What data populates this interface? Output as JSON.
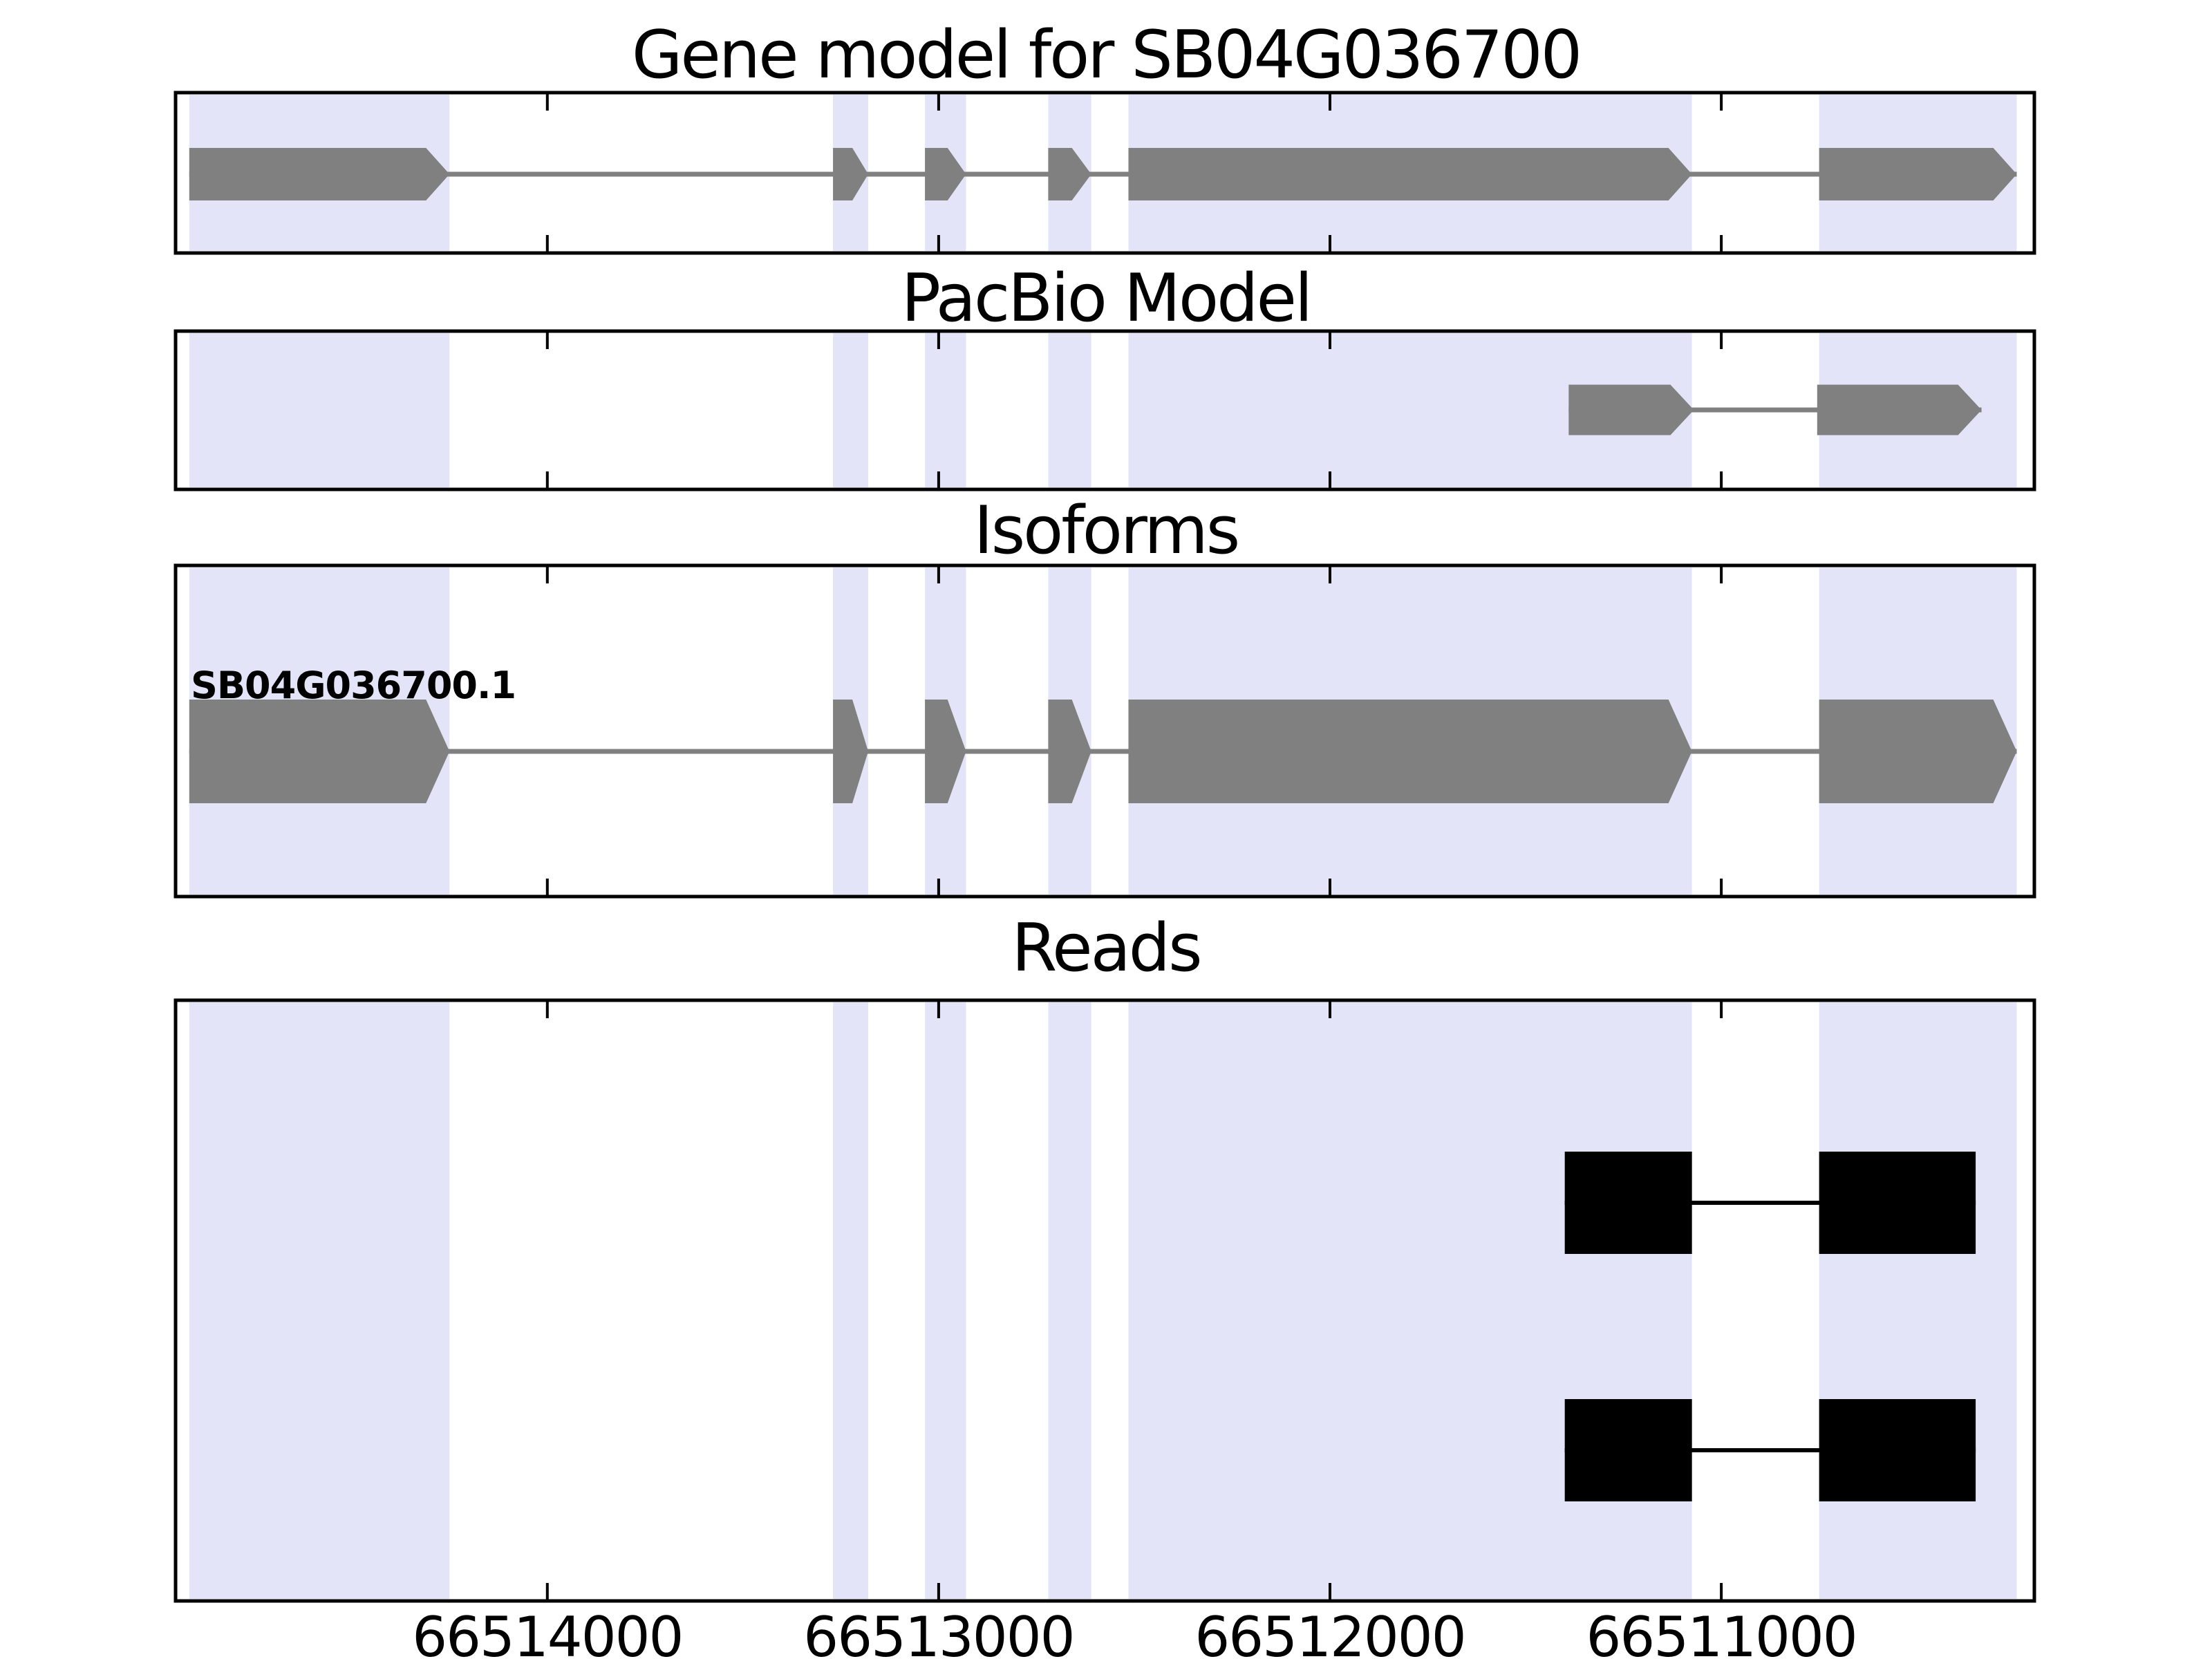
{
  "colors": {
    "background": "#ffffff",
    "exon_fill": "#808080",
    "intron_line": "#808080",
    "highlight_band": "#e4e4f9",
    "read_fill": "#000000",
    "frame": "#000000",
    "text": "#000000"
  },
  "chart_data": {
    "type": "genome-browser-tracks",
    "coordinate_note": "x axis shows genomic position, reversed (values decrease left to right); spans are [left_edge_pos, right_edge_pos] in genomic coordinates",
    "x_axis": {
      "xlim_left": 66514950,
      "xlim_right": 66510200,
      "reversed": true,
      "grid": false,
      "ticks": [
        {
          "pos": 66514000,
          "label": "66514000"
        },
        {
          "pos": 66513000,
          "label": "66513000"
        },
        {
          "pos": 66512000,
          "label": "66512000"
        },
        {
          "pos": 66511000,
          "label": "66511000"
        }
      ]
    },
    "highlight_regions": [
      [
        66514915,
        66514250
      ],
      [
        66513270,
        66513180
      ],
      [
        66513035,
        66512930
      ],
      [
        66512720,
        66512610
      ],
      [
        66512515,
        66511075
      ],
      [
        66510750,
        66510245
      ]
    ],
    "tracks": [
      {
        "id": "gene_model",
        "title": "Gene model for SB04G036700",
        "type": "gene",
        "features": [
          {
            "label": "",
            "arrow_direction": "right",
            "exons": [
              [
                66514915,
                66514250
              ],
              [
                66513270,
                66513180
              ],
              [
                66513035,
                66512930
              ],
              [
                66512720,
                66512610
              ],
              [
                66512515,
                66511075
              ],
              [
                66510750,
                66510245
              ]
            ]
          }
        ]
      },
      {
        "id": "pacbio",
        "title": "PacBio Model",
        "type": "gene",
        "features": [
          {
            "label": "",
            "arrow_direction": "right",
            "exons": [
              [
                66511390,
                66511070
              ],
              [
                66510755,
                66510335
              ]
            ]
          }
        ]
      },
      {
        "id": "isoforms",
        "title": "Isoforms",
        "type": "gene",
        "features": [
          {
            "label": "SB04G036700.1",
            "arrow_direction": "right",
            "exons": [
              [
                66514915,
                66514250
              ],
              [
                66513270,
                66513180
              ],
              [
                66513035,
                66512930
              ],
              [
                66512720,
                66512610
              ],
              [
                66512515,
                66511075
              ],
              [
                66510750,
                66510245
              ]
            ]
          }
        ]
      },
      {
        "id": "reads",
        "title": "Reads",
        "type": "reads",
        "reads": [
          {
            "blocks": [
              [
                66511400,
                66511075
              ],
              [
                66510750,
                66510350
              ]
            ]
          },
          {
            "blocks": [
              [
                66511400,
                66511075
              ],
              [
                66510750,
                66510350
              ]
            ]
          }
        ]
      }
    ]
  }
}
